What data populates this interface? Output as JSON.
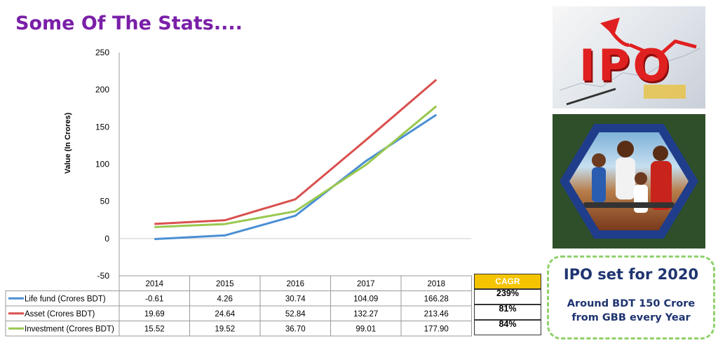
{
  "page": {
    "title": "Some Of The Stats....",
    "title_color": "#7a1fa8"
  },
  "chart_data": {
    "type": "line",
    "categories": [
      "2014",
      "2015",
      "2016",
      "2017",
      "2018"
    ],
    "ylabel": "Value (In Crores)",
    "xlabel": "",
    "ylim": [
      -50,
      250
    ],
    "yticks": [
      -50,
      0,
      50,
      100,
      150,
      200,
      250
    ],
    "grid": false,
    "legend": "table-below",
    "series": [
      {
        "name": "Life fund (Crores BDT)",
        "color": "#4a8fd4",
        "values": [
          -0.61,
          4.26,
          30.74,
          104.09,
          166.28
        ],
        "labels": [
          "-0.61",
          "4.26",
          "30.74",
          "104.09",
          "166.28"
        ]
      },
      {
        "name": "Asset (Crores BDT)",
        "color": "#d9504e",
        "values": [
          19.69,
          24.64,
          52.84,
          132.27,
          213.46
        ],
        "labels": [
          "19.69",
          "24.64",
          "52.84",
          "132.27",
          "213.46"
        ]
      },
      {
        "name": "Investment (Crores BDT)",
        "color": "#99c84f",
        "values": [
          15.52,
          19.52,
          36.7,
          99.01,
          177.9
        ],
        "labels": [
          "15.52",
          "19.52",
          "36.70",
          "99.01",
          "177.90"
        ]
      }
    ]
  },
  "cagr": {
    "header": "CAGR",
    "header_color": "#f5c400",
    "values": [
      "239%",
      "81%",
      "84%"
    ]
  },
  "images": {
    "ipo_text": "IPO",
    "ipo_arrow_color": "#e02020"
  },
  "ipo_card": {
    "heading": "IPO set for 2020",
    "subtext_line1": "Around BDT 150 Crore",
    "subtext_line2": "from GBB every Year",
    "border_color": "#8fd16a"
  }
}
